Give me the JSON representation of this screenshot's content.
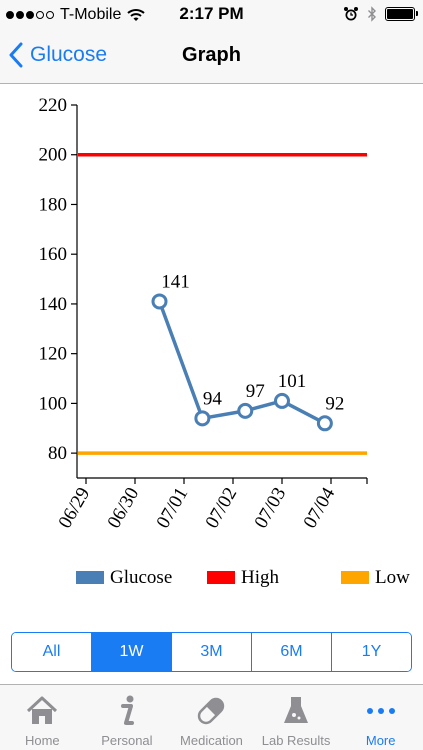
{
  "status_bar": {
    "carrier": "T-Mobile",
    "time": "2:17 PM",
    "signal_bars_filled": 3,
    "signal_bars_total": 5,
    "battery_level": 1.0
  },
  "nav": {
    "back_label": "Glucose",
    "title": "Graph"
  },
  "chart_data": {
    "type": "line",
    "title": "",
    "xlabel": "",
    "ylabel": "",
    "ylim": [
      70,
      220
    ],
    "yticks": [
      80,
      100,
      120,
      140,
      160,
      180,
      200,
      220
    ],
    "x_tick_labels": [
      "06/29",
      "06/30",
      "07/01",
      "07/02",
      "07/03",
      "07/04"
    ],
    "series": [
      {
        "name": "Glucose",
        "color": "#4a7fb5",
        "points": [
          {
            "x": "06/30 12:00",
            "y": 141
          },
          {
            "x": "07/01 09:00",
            "y": 94
          },
          {
            "x": "07/02 06:00",
            "y": 97
          },
          {
            "x": "07/03 00:00",
            "y": 101
          },
          {
            "x": "07/03 21:00",
            "y": 92
          }
        ]
      }
    ],
    "thresholds": [
      {
        "name": "High",
        "value": 200,
        "color": "#ff0000"
      },
      {
        "name": "Low",
        "value": 80,
        "color": "#ffa500"
      }
    ],
    "legend": [
      {
        "label": "Glucose",
        "color": "#4a7fb5"
      },
      {
        "label": "High",
        "color": "#ff0000"
      },
      {
        "label": "Low",
        "color": "#ffa500"
      }
    ],
    "legend_position": "bottom",
    "grid": false
  },
  "range_selector": {
    "options": [
      "All",
      "1W",
      "3M",
      "6M",
      "1Y"
    ],
    "selected": "1W"
  },
  "tab_bar": {
    "tabs": [
      {
        "label": "Home",
        "icon": "house-icon"
      },
      {
        "label": "Personal",
        "icon": "info-icon"
      },
      {
        "label": "Medication",
        "icon": "pill-icon"
      },
      {
        "label": "Lab Results",
        "icon": "flask-icon"
      },
      {
        "label": "More",
        "icon": "more-dots-icon"
      }
    ],
    "active": "More"
  },
  "colors": {
    "accent": "#1a7cf3",
    "inactive_tab": "#8e8e93",
    "bar_background": "#f7f7f7"
  }
}
